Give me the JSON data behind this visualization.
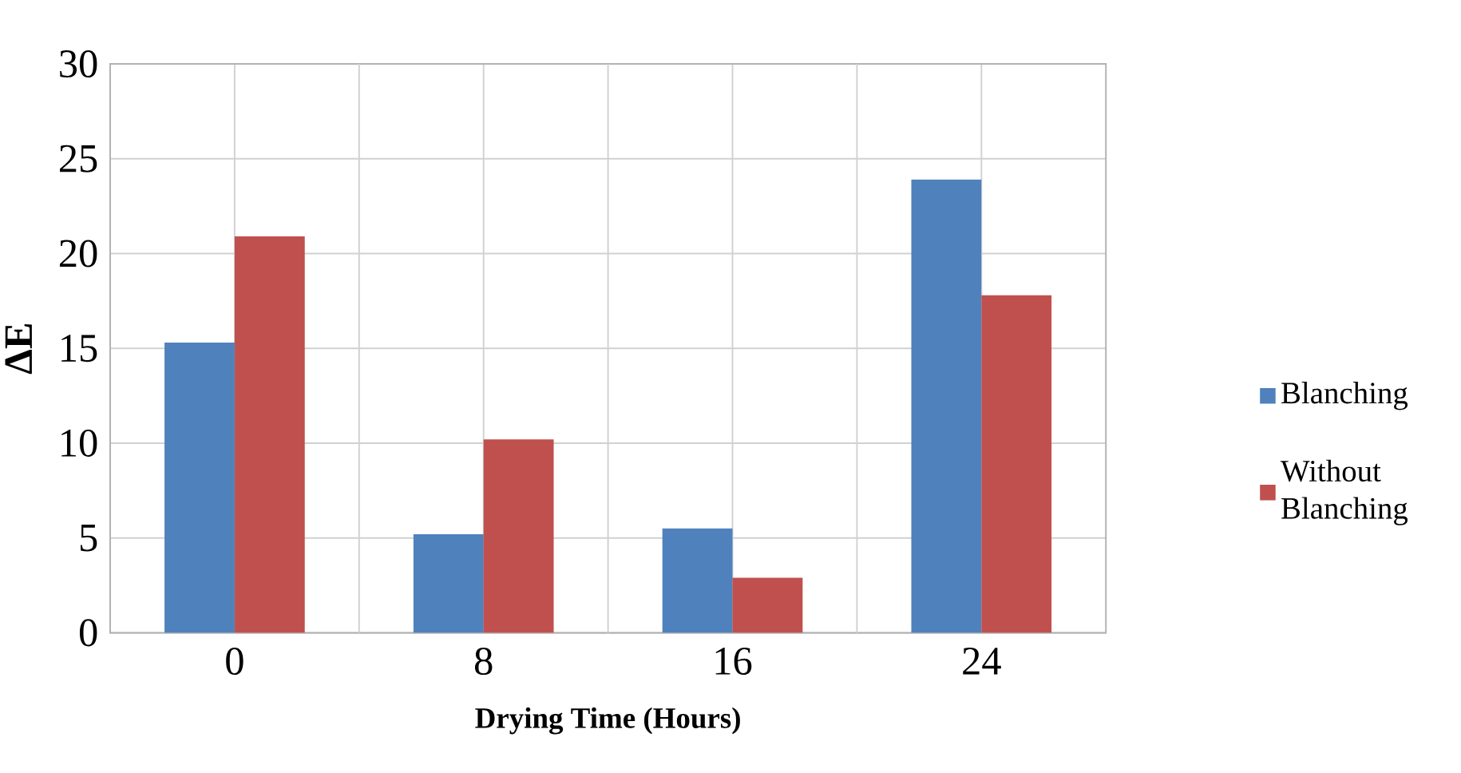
{
  "chart_data": {
    "type": "bar",
    "xlabel": "Drying Time (Hours)",
    "ylabel": "ΔE",
    "categories": [
      "0",
      "8",
      "16",
      "24"
    ],
    "series": [
      {
        "name": "Blanching",
        "color": "#4f81bd",
        "values": [
          15.3,
          5.2,
          5.5,
          23.9
        ]
      },
      {
        "name": "Without Blanching",
        "color": "#c0504d",
        "values": [
          20.9,
          10.2,
          2.9,
          17.8
        ]
      }
    ],
    "ylim": [
      0,
      30
    ],
    "yticks": [
      0,
      5,
      10,
      15,
      20,
      25,
      30
    ],
    "grid": true,
    "legend": "right"
  }
}
